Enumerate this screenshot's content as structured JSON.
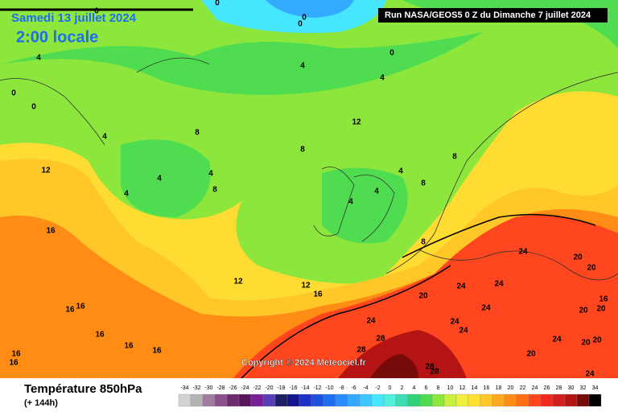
{
  "header": {
    "date": "Samedi 13 juillet 2024",
    "local_time": "2:00 locale",
    "run": "Run NASA/GEOS5 0 Z du Dimanche 7 juillet 2024"
  },
  "map": {
    "copyright": "Copyright © 2024 Meteociel.fr",
    "contour_labels": [
      0,
      0,
      0,
      0,
      0,
      0,
      0,
      4,
      4,
      4,
      4,
      8,
      12,
      8,
      12,
      4,
      4,
      4,
      8,
      4,
      4,
      4,
      8,
      8,
      16,
      12,
      12,
      16,
      16,
      16,
      16,
      16,
      16,
      16,
      16,
      20,
      24,
      28,
      28,
      8,
      24,
      24,
      24,
      24,
      24,
      24,
      20,
      20,
      16,
      20,
      20,
      24,
      20,
      20,
      20,
      28,
      28,
      24
    ]
  },
  "footer": {
    "title": "Température 850hPa",
    "subtitle": "(+ 144h)"
  },
  "scale": {
    "labels": [
      -34,
      -32,
      -30,
      -28,
      -26,
      -24,
      -22,
      -20,
      -18,
      -16,
      -14,
      -12,
      -10,
      -8,
      -6,
      -4,
      -2,
      0,
      2,
      4,
      6,
      8,
      10,
      12,
      14,
      16,
      18,
      20,
      22,
      24,
      26,
      28,
      30,
      32,
      34
    ],
    "colors": [
      "#d2d2d2",
      "#b4b4b4",
      "#a07ca0",
      "#8c508c",
      "#6e2a6e",
      "#5a145a",
      "#781e96",
      "#5a3cb4",
      "#1e1e64",
      "#14148c",
      "#1e32c8",
      "#1e50dc",
      "#1e6ef0",
      "#288cff",
      "#32aaff",
      "#3cc8ff",
      "#46e6ff",
      "#50f0dc",
      "#3cdcb4",
      "#32d278",
      "#50dc50",
      "#8ce63c",
      "#c8f03c",
      "#f0f03c",
      "#ffe132",
      "#ffc828",
      "#ffaa1e",
      "#ff8c14",
      "#ff6e14",
      "#ff461e",
      "#f0281e",
      "#d21e1e",
      "#b41414",
      "#780a0a",
      "#000000"
    ]
  }
}
